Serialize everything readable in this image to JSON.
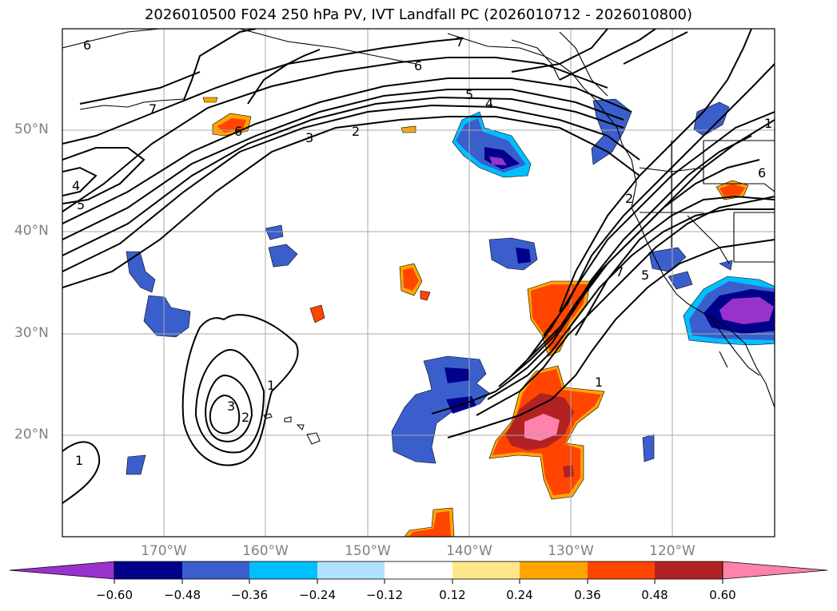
{
  "title": "2026010500 F024 250 hPa PV, IVT Landfall PC (2026010712 - 2026010800)",
  "lat_labels": [
    "50°N",
    "40°N",
    "30°N",
    "20°N"
  ],
  "lon_labels": [
    "170°W",
    "160°W",
    "150°W",
    "140°W",
    "130°W",
    "120°W"
  ],
  "pv_contour_labels": [
    "6",
    "7",
    "6",
    "5",
    "4",
    "3",
    "2",
    "6",
    "7",
    "4",
    "5",
    "1",
    "2",
    "3",
    "1",
    "2",
    "7",
    "5",
    "1",
    "6",
    "1"
  ],
  "colorbar": {
    "ticks": [
      "−0.60",
      "−0.48",
      "−0.36",
      "−0.24",
      "−0.12",
      "0.12",
      "0.24",
      "0.36",
      "0.48",
      "0.60"
    ],
    "colors": [
      "#9932cc",
      "#00008b",
      "#3a5fcd",
      "#00bfff",
      "#b0e2ff",
      "#ffffff",
      "#ffe68a",
      "#ffa500",
      "#ff4500",
      "#b22222",
      "#ff82ab"
    ]
  }
}
